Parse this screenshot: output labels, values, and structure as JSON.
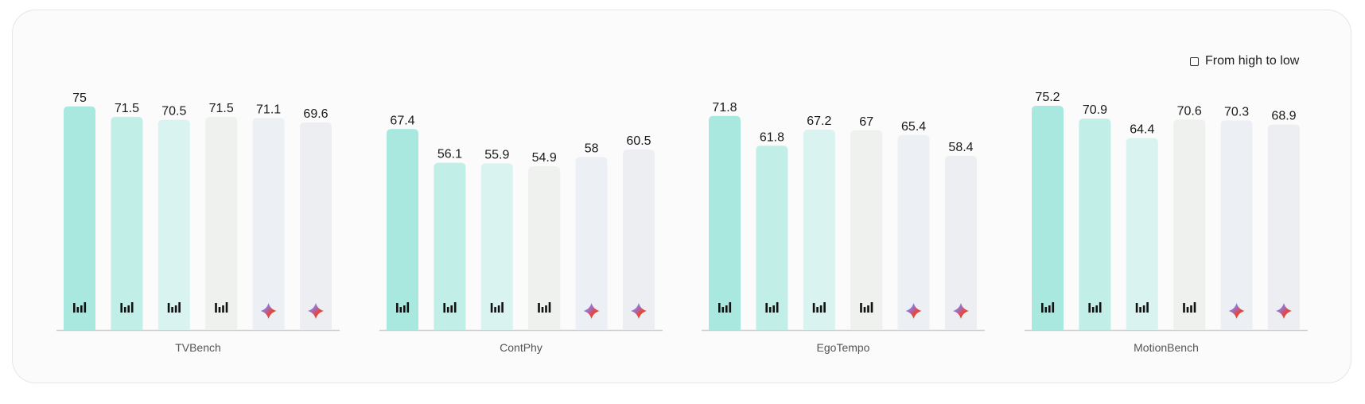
{
  "controls": {
    "sort_label": "From high to low"
  },
  "chart_data": {
    "type": "bar",
    "title": "",
    "xlabel": "",
    "ylabel": "",
    "ylim": [
      0,
      80
    ],
    "legend": "none",
    "colors": [
      "#a8e8df",
      "#c2eee8",
      "#d9f4f0",
      "#eef1ee",
      "#eceff3",
      "#eceef2"
    ],
    "icons": [
      "bar-logo-icon",
      "bar-logo-icon",
      "bar-logo-icon",
      "bar-logo-icon",
      "sparkle-icon",
      "sparkle-icon"
    ],
    "groups": [
      {
        "category": "TVBench",
        "values": [
          75,
          71.5,
          70.5,
          71.5,
          71.1,
          69.6
        ]
      },
      {
        "category": "ContPhy",
        "values": [
          67.4,
          56.1,
          55.9,
          54.9,
          58,
          60.5
        ]
      },
      {
        "category": "EgoTempo",
        "values": [
          71.8,
          61.8,
          67.2,
          67,
          65.4,
          58.4
        ]
      },
      {
        "category": "MotionBench",
        "values": [
          75.2,
          70.9,
          64.4,
          70.6,
          70.3,
          68.9
        ]
      }
    ]
  }
}
